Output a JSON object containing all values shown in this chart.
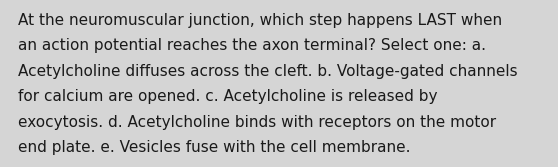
{
  "lines": [
    "At the neuromuscular junction, which step happens LAST when",
    "an action potential reaches the axon terminal? Select one: a.",
    "Acetylcholine diffuses across the cleft. b. Voltage-gated channels",
    "for calcium are opened. c. Acetylcholine is released by",
    "exocytosis. d. Acetylcholine binds with receptors on the motor",
    "end plate. e. Vesicles fuse with the cell membrane."
  ],
  "background_color": "#d5d5d5",
  "text_color": "#1a1a1a",
  "font_size": 11.0,
  "fig_width": 5.58,
  "fig_height": 1.67,
  "dpi": 100
}
